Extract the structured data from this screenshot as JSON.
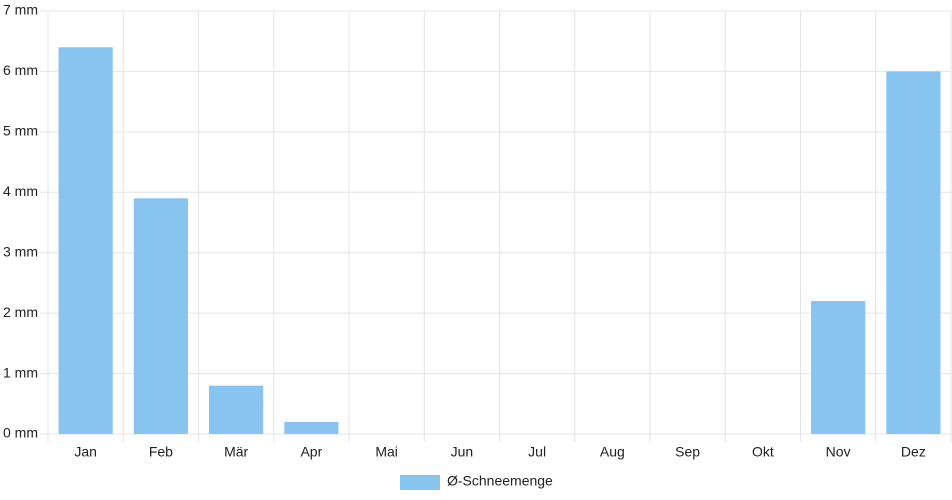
{
  "chart_data": {
    "type": "bar",
    "categories": [
      "Jan",
      "Feb",
      "Mär",
      "Apr",
      "Mai",
      "Jun",
      "Jul",
      "Aug",
      "Sep",
      "Okt",
      "Nov",
      "Dez"
    ],
    "series": [
      {
        "name": "Ø-Schneemenge",
        "color": "#87c5f0",
        "values": [
          6.4,
          3.9,
          0.8,
          0.2,
          0,
          0,
          0,
          0,
          0,
          0,
          2.2,
          6.0
        ]
      }
    ],
    "ylim": [
      0,
      7
    ],
    "yticks": [
      {
        "value": 0,
        "label": "0 mm"
      },
      {
        "value": 1,
        "label": "1 mm"
      },
      {
        "value": 2,
        "label": "2 mm"
      },
      {
        "value": 3,
        "label": "3 mm"
      },
      {
        "value": 4,
        "label": "4 mm"
      },
      {
        "value": 5,
        "label": "5 mm"
      },
      {
        "value": 6,
        "label": "6 mm"
      },
      {
        "value": 7,
        "label": "7 mm"
      }
    ],
    "grid": true,
    "legend": "bottom"
  }
}
